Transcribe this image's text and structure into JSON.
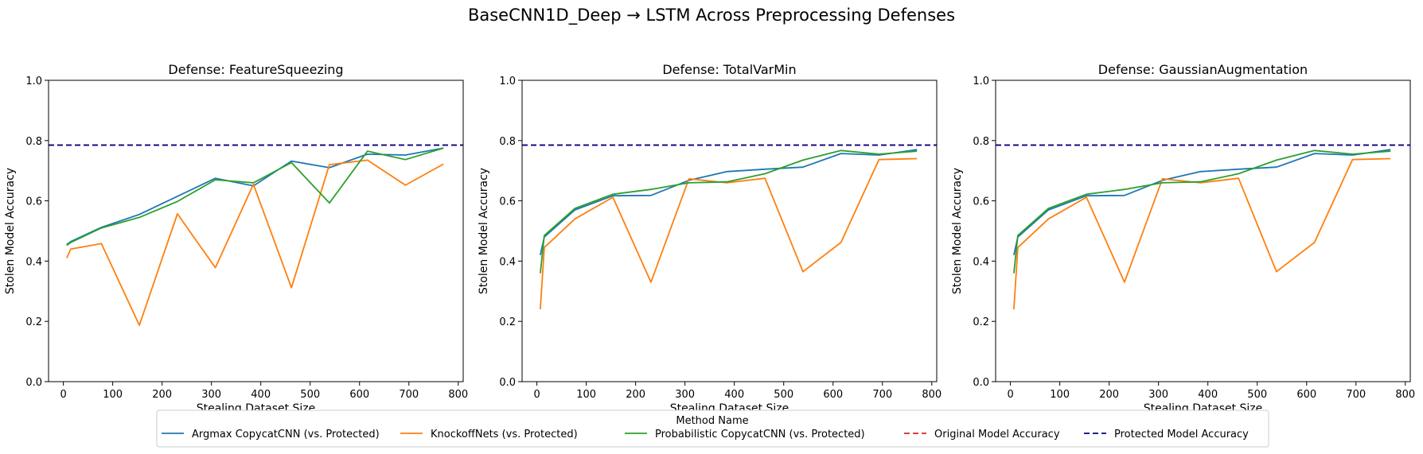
{
  "figure": {
    "suptitle": "BaseCNN1D_Deep → LSTM Across Preprocessing Defenses"
  },
  "legend": {
    "title": "Method Name",
    "entries": [
      {
        "label": "Argmax CopycatCNN (vs. Protected)",
        "color": "#1f77b4",
        "style": "solid"
      },
      {
        "label": "KnockoffNets (vs. Protected)",
        "color": "#ff7f0e",
        "style": "solid"
      },
      {
        "label": "Probabilistic CopycatCNN (vs. Protected)",
        "color": "#2ca02c",
        "style": "solid"
      },
      {
        "label": "Original Model Accuracy",
        "color": "#d62728",
        "style": "dashed"
      },
      {
        "label": "Protected Model Accuracy",
        "color": "#00008b",
        "style": "dashed"
      }
    ]
  },
  "chart_data": [
    {
      "type": "line",
      "title": "Defense: FeatureSqueezing",
      "xlabel": "Stealing Dataset Size",
      "ylabel": "Stolen Model Accuracy",
      "xlim": [
        -30,
        810
      ],
      "ylim": [
        0,
        1
      ],
      "xticks": [
        0,
        100,
        200,
        300,
        400,
        500,
        600,
        700,
        800
      ],
      "yticks": [
        0.0,
        0.2,
        0.4,
        0.6,
        0.8,
        1.0
      ],
      "grid": false,
      "hlines": [
        {
          "name": "Original Model Accuracy",
          "y": 0.785,
          "color": "#d62728"
        },
        {
          "name": "Protected Model Accuracy",
          "y": 0.785,
          "color": "#00008b"
        }
      ],
      "series": [
        {
          "name": "Argmax CopycatCNN (vs. Protected)",
          "color": "#1f77b4",
          "x": [
            7,
            15,
            77,
            154,
            231,
            308,
            385,
            462,
            539,
            616,
            693,
            770
          ],
          "y": [
            0.455,
            0.465,
            0.512,
            0.555,
            0.615,
            0.675,
            0.65,
            0.732,
            0.71,
            0.755,
            0.752,
            0.775
          ]
        },
        {
          "name": "KnockoffNets (vs. Protected)",
          "color": "#ff7f0e",
          "x": [
            7,
            15,
            77,
            154,
            231,
            308,
            385,
            462,
            539,
            616,
            693,
            770
          ],
          "y": [
            0.41,
            0.44,
            0.458,
            0.187,
            0.557,
            0.378,
            0.655,
            0.312,
            0.72,
            0.735,
            0.652,
            0.722
          ]
        },
        {
          "name": "Probabilistic CopycatCNN (vs. Protected)",
          "color": "#2ca02c",
          "x": [
            7,
            15,
            77,
            154,
            231,
            308,
            385,
            462,
            539,
            616,
            693,
            770
          ],
          "y": [
            0.452,
            0.462,
            0.51,
            0.545,
            0.598,
            0.67,
            0.66,
            0.727,
            0.593,
            0.765,
            0.737,
            0.775
          ]
        }
      ]
    },
    {
      "type": "line",
      "title": "Defense: TotalVarMin",
      "xlabel": "Stealing Dataset Size",
      "ylabel": "Stolen Model Accuracy",
      "xlim": [
        -30,
        810
      ],
      "ylim": [
        0,
        1
      ],
      "xticks": [
        0,
        100,
        200,
        300,
        400,
        500,
        600,
        700,
        800
      ],
      "yticks": [
        0.0,
        0.2,
        0.4,
        0.6,
        0.8,
        1.0
      ],
      "grid": false,
      "hlines": [
        {
          "name": "Original Model Accuracy",
          "y": 0.785,
          "color": "#d62728"
        },
        {
          "name": "Protected Model Accuracy",
          "y": 0.785,
          "color": "#00008b"
        }
      ],
      "series": [
        {
          "name": "Argmax CopycatCNN (vs. Protected)",
          "color": "#1f77b4",
          "x": [
            7,
            15,
            77,
            154,
            231,
            308,
            385,
            462,
            539,
            616,
            693,
            770
          ],
          "y": [
            0.42,
            0.48,
            0.57,
            0.617,
            0.618,
            0.668,
            0.697,
            0.705,
            0.712,
            0.757,
            0.752,
            0.77
          ]
        },
        {
          "name": "KnockoffNets (vs. Protected)",
          "color": "#ff7f0e",
          "x": [
            7,
            15,
            77,
            154,
            231,
            308,
            385,
            462,
            539,
            616,
            693,
            770
          ],
          "y": [
            0.24,
            0.445,
            0.54,
            0.612,
            0.33,
            0.673,
            0.66,
            0.675,
            0.365,
            0.462,
            0.737,
            0.74
          ]
        },
        {
          "name": "Probabilistic CopycatCNN (vs. Protected)",
          "color": "#2ca02c",
          "x": [
            7,
            15,
            77,
            154,
            231,
            308,
            385,
            462,
            539,
            616,
            693,
            770
          ],
          "y": [
            0.36,
            0.485,
            0.575,
            0.622,
            0.638,
            0.66,
            0.663,
            0.69,
            0.735,
            0.767,
            0.755,
            0.765
          ]
        }
      ]
    },
    {
      "type": "line",
      "title": "Defense: GaussianAugmentation",
      "xlabel": "Stealing Dataset Size",
      "ylabel": "Stolen Model Accuracy",
      "xlim": [
        -30,
        810
      ],
      "ylim": [
        0,
        1
      ],
      "xticks": [
        0,
        100,
        200,
        300,
        400,
        500,
        600,
        700,
        800
      ],
      "yticks": [
        0.0,
        0.2,
        0.4,
        0.6,
        0.8,
        1.0
      ],
      "grid": false,
      "hlines": [
        {
          "name": "Original Model Accuracy",
          "y": 0.785,
          "color": "#d62728"
        },
        {
          "name": "Protected Model Accuracy",
          "y": 0.785,
          "color": "#00008b"
        }
      ],
      "series": [
        {
          "name": "Argmax CopycatCNN (vs. Protected)",
          "color": "#1f77b4",
          "x": [
            7,
            15,
            77,
            154,
            231,
            308,
            385,
            462,
            539,
            616,
            693,
            770
          ],
          "y": [
            0.42,
            0.48,
            0.57,
            0.617,
            0.618,
            0.668,
            0.697,
            0.705,
            0.712,
            0.757,
            0.752,
            0.77
          ]
        },
        {
          "name": "KnockoffNets (vs. Protected)",
          "color": "#ff7f0e",
          "x": [
            7,
            15,
            77,
            154,
            231,
            308,
            385,
            462,
            539,
            616,
            693,
            770
          ],
          "y": [
            0.24,
            0.445,
            0.54,
            0.612,
            0.33,
            0.673,
            0.66,
            0.675,
            0.365,
            0.462,
            0.737,
            0.74
          ]
        },
        {
          "name": "Probabilistic CopycatCNN (vs. Protected)",
          "color": "#2ca02c",
          "x": [
            7,
            15,
            77,
            154,
            231,
            308,
            385,
            462,
            539,
            616,
            693,
            770
          ],
          "y": [
            0.36,
            0.485,
            0.575,
            0.622,
            0.638,
            0.66,
            0.663,
            0.69,
            0.735,
            0.767,
            0.755,
            0.765
          ]
        }
      ]
    }
  ]
}
